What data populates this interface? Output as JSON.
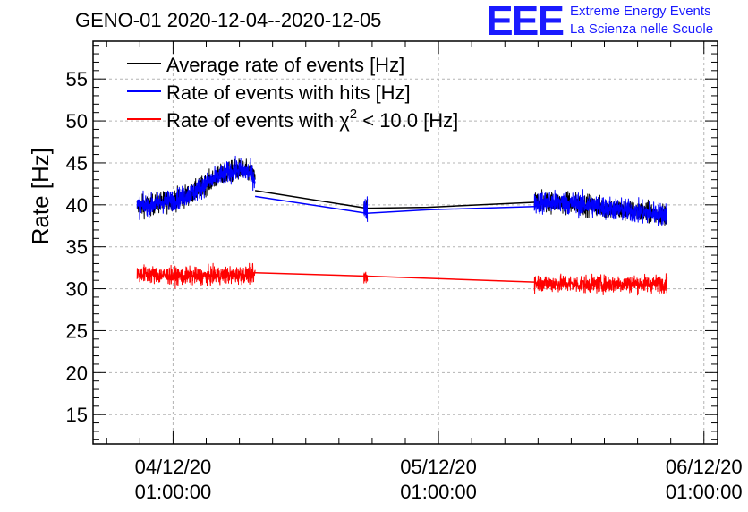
{
  "header": {
    "title": "GENO-01 2020-12-04--2020-12-05",
    "logo_text": "EEE",
    "logo_line1": "Extreme Energy Events",
    "logo_line2": "La Scienza nelle Scuole"
  },
  "colors": {
    "average": "#000000",
    "hits": "#0000ff",
    "chi2": "#ff0000",
    "logo": "#1a1aff",
    "grid": "#b4b4b4"
  },
  "chart_data": {
    "type": "line",
    "title": "GENO-01 2020-12-04--2020-12-05",
    "xlabel": "",
    "ylabel": "Rate [Hz]",
    "ylim": [
      11.5,
      59.5
    ],
    "yticks": [
      15,
      20,
      25,
      30,
      35,
      40,
      45,
      50,
      55
    ],
    "ytick_labels": [
      "15",
      "20",
      "25",
      "30",
      "35",
      "40",
      "45",
      "50",
      "55"
    ],
    "xlim": [
      "2020-12-03 17:46",
      "2020-12-06 02:14"
    ],
    "xticks": [
      "2020-12-04 01:00",
      "2020-12-05 01:00",
      "2020-12-06 01:00"
    ],
    "xtick_labels": [
      [
        "04/12/20",
        "01:00:00"
      ],
      [
        "05/12/20",
        "01:00:00"
      ],
      [
        "06/12/20",
        "01:00:00"
      ]
    ],
    "grid": true,
    "legend_position": "top-left",
    "legend": [
      {
        "label_main": "Average rate of events [Hz]",
        "series": "Average rate of events [Hz]"
      },
      {
        "label_main": "Rate of events with hits [Hz]",
        "series": "Rate of events with hits [Hz]"
      },
      {
        "label_main": "Rate of events with ",
        "label_symbol": "χ",
        "label_sup": "2",
        "label_tail": " < 10.0 [Hz]",
        "series": "Rate of events with χ2 < 10.0 [Hz]"
      }
    ],
    "series": [
      {
        "name": "Average rate of events [Hz]",
        "color": "#000000",
        "segments": [
          {
            "x": [
              "2020-12-03 21:45",
              "2020-12-03 23:00",
              "2020-12-04 00:00",
              "2020-12-04 01:00",
              "2020-12-04 02:00",
              "2020-12-04 03:00",
              "2020-12-04 04:00",
              "2020-12-04 05:00",
              "2020-12-04 06:00",
              "2020-12-04 07:00",
              "2020-12-04 08:00",
              "2020-12-04 08:25"
            ],
            "y": [
              39.8,
              40.0,
              40.3,
              40.6,
              41.0,
              41.6,
              42.5,
              43.3,
              43.9,
              44.2,
              43.8,
              43.0
            ],
            "noise": 1.1
          },
          {
            "x": [
              "2020-12-04 08:25",
              "2020-12-04 18:30",
              "2020-12-05 00:00",
              "2020-12-05 09:40"
            ],
            "y": [
              41.7,
              39.6,
              39.7,
              40.3
            ],
            "noise": 0
          },
          {
            "x": [
              "2020-12-04 18:15",
              "2020-12-04 18:35"
            ],
            "y": [
              39.6,
              39.6
            ],
            "noise": 1.3
          },
          {
            "x": [
              "2020-12-05 09:40",
              "2020-12-05 12:00",
              "2020-12-05 15:00",
              "2020-12-05 18:00",
              "2020-12-05 20:00",
              "2020-12-05 21:40"
            ],
            "y": [
              40.3,
              40.3,
              39.9,
              39.3,
              39.0,
              38.9
            ],
            "noise": 1.1
          }
        ]
      },
      {
        "name": "Rate of events with hits [Hz]",
        "color": "#0000ff",
        "segments": [
          {
            "x": [
              "2020-12-03 21:45",
              "2020-12-03 23:00",
              "2020-12-04 00:00",
              "2020-12-04 01:00",
              "2020-12-04 02:00",
              "2020-12-04 03:00",
              "2020-12-04 04:00",
              "2020-12-04 05:00",
              "2020-12-04 06:00",
              "2020-12-04 07:00",
              "2020-12-04 08:00",
              "2020-12-04 08:25"
            ],
            "y": [
              39.8,
              40.0,
              40.3,
              40.6,
              41.0,
              41.6,
              42.5,
              43.3,
              43.9,
              44.2,
              43.8,
              43.0
            ],
            "noise": 1.1
          },
          {
            "x": [
              "2020-12-04 08:25",
              "2020-12-04 18:30",
              "2020-12-05 00:00",
              "2020-12-05 09:40"
            ],
            "y": [
              41.0,
              39.0,
              39.4,
              39.8
            ],
            "noise": 0
          },
          {
            "x": [
              "2020-12-04 18:15",
              "2020-12-04 18:35"
            ],
            "y": [
              39.4,
              39.4
            ],
            "noise": 1.4
          },
          {
            "x": [
              "2020-12-05 09:40",
              "2020-12-05 12:00",
              "2020-12-05 15:00",
              "2020-12-05 18:00",
              "2020-12-05 20:00",
              "2020-12-05 21:40"
            ],
            "y": [
              40.3,
              40.3,
              39.9,
              39.3,
              39.0,
              38.9
            ],
            "noise": 1.2
          }
        ]
      },
      {
        "name": "Rate of events with χ2 < 10.0 [Hz]",
        "color": "#ff0000",
        "segments": [
          {
            "x": [
              "2020-12-03 21:45",
              "2020-12-04 00:00",
              "2020-12-04 02:00",
              "2020-12-04 04:00",
              "2020-12-04 06:00",
              "2020-12-04 08:25"
            ],
            "y": [
              31.8,
              31.6,
              31.5,
              31.5,
              31.6,
              31.7
            ],
            "noise": 0.9
          },
          {
            "x": [
              "2020-12-04 08:25",
              "2020-12-04 18:30",
              "2020-12-05 09:40"
            ],
            "y": [
              31.9,
              31.5,
              30.8
            ],
            "noise": 0
          },
          {
            "x": [
              "2020-12-04 18:15",
              "2020-12-04 18:35"
            ],
            "y": [
              31.5,
              31.5
            ],
            "noise": 1.1
          },
          {
            "x": [
              "2020-12-05 09:40",
              "2020-12-05 12:00",
              "2020-12-05 15:00",
              "2020-12-05 18:00",
              "2020-12-05 21:40"
            ],
            "y": [
              30.7,
              30.6,
              30.5,
              30.6,
              30.6
            ],
            "noise": 0.9
          }
        ]
      }
    ]
  }
}
